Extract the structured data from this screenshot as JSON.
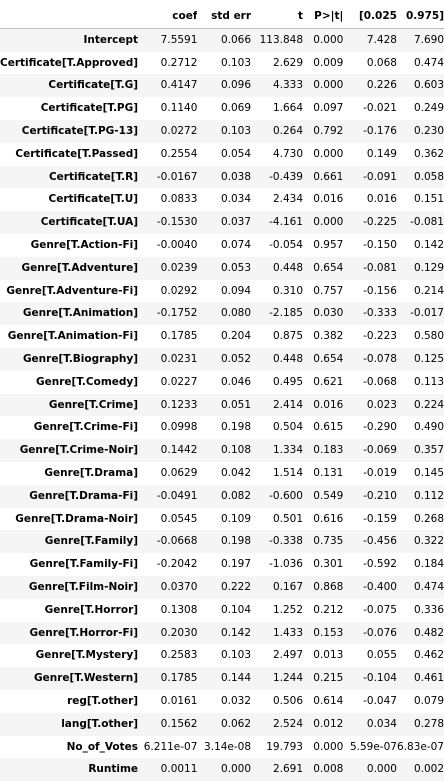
{
  "table": {
    "columns": [
      "",
      "coef",
      "std err",
      "t",
      "P>|t|",
      "[0.025",
      "0.975]"
    ],
    "rows": [
      {
        "label": "Intercept",
        "values": [
          "7.5591",
          "0.066",
          "113.848",
          "0.000",
          "7.428",
          "7.690"
        ]
      },
      {
        "label": "Certificate[T.Approved]",
        "values": [
          "0.2712",
          "0.103",
          "2.629",
          "0.009",
          "0.068",
          "0.474"
        ]
      },
      {
        "label": "Certificate[T.G]",
        "values": [
          "0.4147",
          "0.096",
          "4.333",
          "0.000",
          "0.226",
          "0.603"
        ]
      },
      {
        "label": "Certificate[T.PG]",
        "values": [
          "0.1140",
          "0.069",
          "1.664",
          "0.097",
          "-0.021",
          "0.249"
        ]
      },
      {
        "label": "Certificate[T.PG-13]",
        "values": [
          "0.0272",
          "0.103",
          "0.264",
          "0.792",
          "-0.176",
          "0.230"
        ]
      },
      {
        "label": "Certificate[T.Passed]",
        "values": [
          "0.2554",
          "0.054",
          "4.730",
          "0.000",
          "0.149",
          "0.362"
        ]
      },
      {
        "label": "Certificate[T.R]",
        "values": [
          "-0.0167",
          "0.038",
          "-0.439",
          "0.661",
          "-0.091",
          "0.058"
        ]
      },
      {
        "label": "Certificate[T.U]",
        "values": [
          "0.0833",
          "0.034",
          "2.434",
          "0.016",
          "0.016",
          "0.151"
        ]
      },
      {
        "label": "Certificate[T.UA]",
        "values": [
          "-0.1530",
          "0.037",
          "-4.161",
          "0.000",
          "-0.225",
          "-0.081"
        ]
      },
      {
        "label": "Genre[T.Action-Fi]",
        "values": [
          "-0.0040",
          "0.074",
          "-0.054",
          "0.957",
          "-0.150",
          "0.142"
        ]
      },
      {
        "label": "Genre[T.Adventure]",
        "values": [
          "0.0239",
          "0.053",
          "0.448",
          "0.654",
          "-0.081",
          "0.129"
        ]
      },
      {
        "label": "Genre[T.Adventure-Fi]",
        "values": [
          "0.0292",
          "0.094",
          "0.310",
          "0.757",
          "-0.156",
          "0.214"
        ]
      },
      {
        "label": "Genre[T.Animation]",
        "values": [
          "-0.1752",
          "0.080",
          "-2.185",
          "0.030",
          "-0.333",
          "-0.017"
        ]
      },
      {
        "label": "Genre[T.Animation-Fi]",
        "values": [
          "0.1785",
          "0.204",
          "0.875",
          "0.382",
          "-0.223",
          "0.580"
        ]
      },
      {
        "label": "Genre[T.Biography]",
        "values": [
          "0.0231",
          "0.052",
          "0.448",
          "0.654",
          "-0.078",
          "0.125"
        ]
      },
      {
        "label": "Genre[T.Comedy]",
        "values": [
          "0.0227",
          "0.046",
          "0.495",
          "0.621",
          "-0.068",
          "0.113"
        ]
      },
      {
        "label": "Genre[T.Crime]",
        "values": [
          "0.1233",
          "0.051",
          "2.414",
          "0.016",
          "0.023",
          "0.224"
        ]
      },
      {
        "label": "Genre[T.Crime-Fi]",
        "values": [
          "0.0998",
          "0.198",
          "0.504",
          "0.615",
          "-0.290",
          "0.490"
        ]
      },
      {
        "label": "Genre[T.Crime-Noir]",
        "values": [
          "0.1442",
          "0.108",
          "1.334",
          "0.183",
          "-0.069",
          "0.357"
        ]
      },
      {
        "label": "Genre[T.Drama]",
        "values": [
          "0.0629",
          "0.042",
          "1.514",
          "0.131",
          "-0.019",
          "0.145"
        ]
      },
      {
        "label": "Genre[T.Drama-Fi]",
        "values": [
          "-0.0491",
          "0.082",
          "-0.600",
          "0.549",
          "-0.210",
          "0.112"
        ]
      },
      {
        "label": "Genre[T.Drama-Noir]",
        "values": [
          "0.0545",
          "0.109",
          "0.501",
          "0.616",
          "-0.159",
          "0.268"
        ]
      },
      {
        "label": "Genre[T.Family]",
        "values": [
          "-0.0668",
          "0.198",
          "-0.338",
          "0.735",
          "-0.456",
          "0.322"
        ]
      },
      {
        "label": "Genre[T.Family-Fi]",
        "values": [
          "-0.2042",
          "0.197",
          "-1.036",
          "0.301",
          "-0.592",
          "0.184"
        ]
      },
      {
        "label": "Genre[T.Film-Noir]",
        "values": [
          "0.0370",
          "0.222",
          "0.167",
          "0.868",
          "-0.400",
          "0.474"
        ]
      },
      {
        "label": "Genre[T.Horror]",
        "values": [
          "0.1308",
          "0.104",
          "1.252",
          "0.212",
          "-0.075",
          "0.336"
        ]
      },
      {
        "label": "Genre[T.Horror-Fi]",
        "values": [
          "0.2030",
          "0.142",
          "1.433",
          "0.153",
          "-0.076",
          "0.482"
        ]
      },
      {
        "label": "Genre[T.Mystery]",
        "values": [
          "0.2583",
          "0.103",
          "2.497",
          "0.013",
          "0.055",
          "0.462"
        ]
      },
      {
        "label": "Genre[T.Western]",
        "values": [
          "0.1785",
          "0.144",
          "1.244",
          "0.215",
          "-0.104",
          "0.461"
        ]
      },
      {
        "label": "reg[T.other]",
        "values": [
          "0.0161",
          "0.032",
          "0.506",
          "0.614",
          "-0.047",
          "0.079"
        ]
      },
      {
        "label": "lang[T.other]",
        "values": [
          "0.1562",
          "0.062",
          "2.524",
          "0.012",
          "0.034",
          "0.278"
        ]
      },
      {
        "label": "No_of_Votes",
        "values": [
          "6.211e-07",
          "3.14e-08",
          "19.793",
          "0.000",
          "5.59e-07",
          "6.83e-07"
        ]
      },
      {
        "label": "Runtime",
        "values": [
          "0.0011",
          "0.000",
          "2.691",
          "0.008",
          "0.000",
          "0.002"
        ]
      }
    ]
  }
}
